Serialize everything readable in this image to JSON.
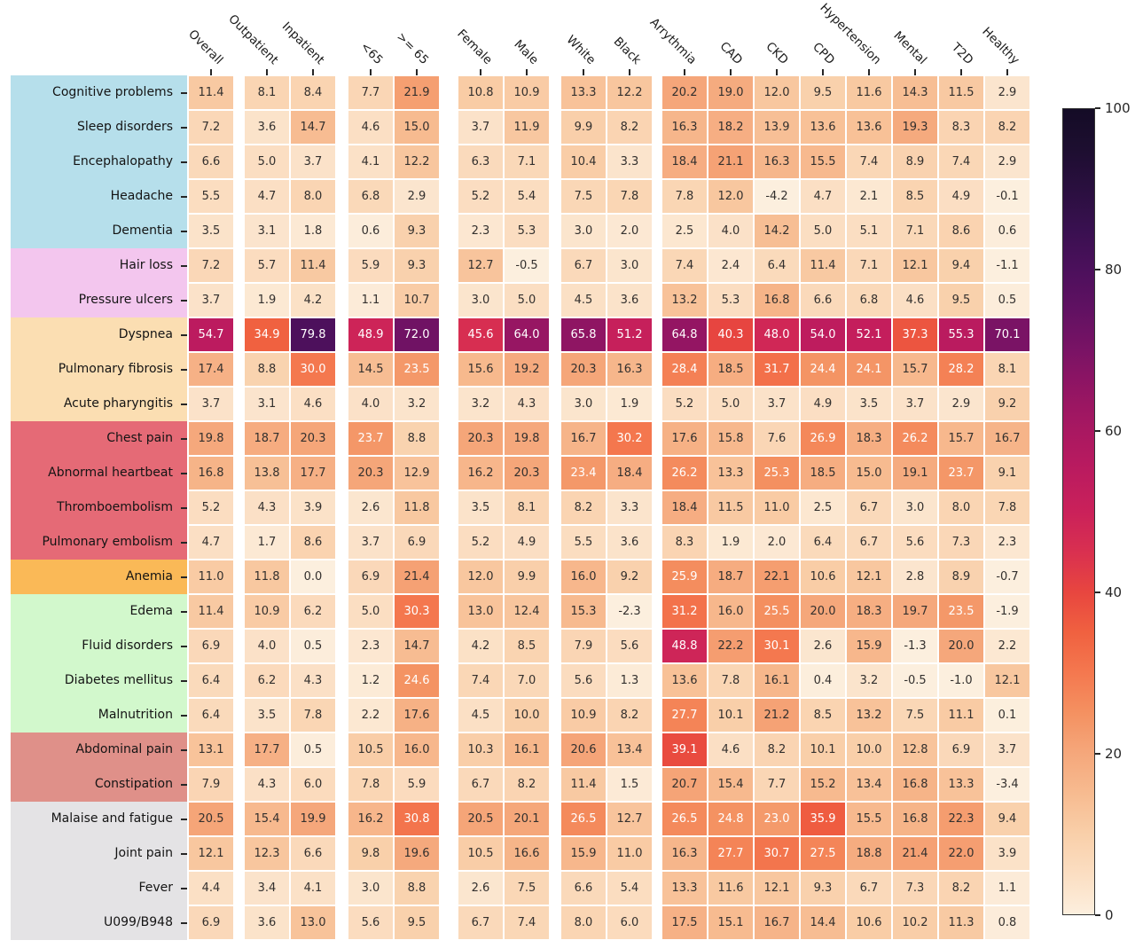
{
  "chart_data": {
    "type": "heatmap",
    "title": "",
    "columns": [
      "Overall",
      "Outpatient",
      "Inpatient",
      "<65",
      ">= 65",
      "Female",
      "Male",
      "White",
      "Black",
      "Arrythmia",
      "CAD",
      "CKD",
      "CPD",
      "Hypertension",
      "Mental",
      "T2D",
      "Healthy"
    ],
    "column_group_sizes": [
      1,
      2,
      2,
      2,
      2,
      8
    ],
    "rows": [
      "Cognitive problems",
      "Sleep disorders",
      "Encephalopathy",
      "Headache",
      "Dementia",
      "Hair loss",
      "Pressure ulcers",
      "Dyspnea",
      "Pulmonary fibrosis",
      "Acute pharyngitis",
      "Chest pain",
      "Abnormal heartbeat",
      "Thromboembolism",
      "Pulmonary embolism",
      "Anemia",
      "Edema",
      "Fluid disorders",
      "Diabetes mellitus",
      "Malnutrition",
      "Abdominal pain",
      "Constipation",
      "Malaise and fatigue",
      "Joint pain",
      "Fever",
      "U099/B948"
    ],
    "values": [
      [
        11.4,
        8.1,
        8.4,
        7.7,
        21.9,
        10.8,
        10.9,
        13.3,
        12.2,
        20.2,
        19.0,
        12.0,
        9.5,
        11.6,
        14.3,
        11.5,
        2.9
      ],
      [
        7.2,
        3.6,
        14.7,
        4.6,
        15.0,
        3.7,
        11.9,
        9.9,
        8.2,
        16.3,
        18.2,
        13.9,
        13.6,
        13.6,
        19.3,
        8.3,
        8.2
      ],
      [
        6.6,
        5.0,
        3.7,
        4.1,
        12.2,
        6.3,
        7.1,
        10.4,
        3.3,
        18.4,
        21.1,
        16.3,
        15.5,
        7.4,
        8.9,
        7.4,
        2.9
      ],
      [
        5.5,
        4.7,
        8.0,
        6.8,
        2.9,
        5.2,
        5.4,
        7.5,
        7.8,
        7.8,
        12.0,
        -4.2,
        4.7,
        2.1,
        8.5,
        4.9,
        -0.1
      ],
      [
        3.5,
        3.1,
        1.8,
        0.6,
        9.3,
        2.3,
        5.3,
        3.0,
        2.0,
        2.5,
        4.0,
        14.2,
        5.0,
        5.1,
        7.1,
        8.6,
        0.6
      ],
      [
        7.2,
        5.7,
        11.4,
        5.9,
        9.3,
        12.7,
        -0.5,
        6.7,
        3.0,
        7.4,
        2.4,
        6.4,
        11.4,
        7.1,
        12.1,
        9.4,
        -1.1
      ],
      [
        3.7,
        1.9,
        4.2,
        1.1,
        10.7,
        3.0,
        5.0,
        4.5,
        3.6,
        13.2,
        5.3,
        16.8,
        6.6,
        6.8,
        4.6,
        9.5,
        0.5
      ],
      [
        54.7,
        34.9,
        79.8,
        48.9,
        72.0,
        45.6,
        64.0,
        65.8,
        51.2,
        64.8,
        40.3,
        48.0,
        54.0,
        52.1,
        37.3,
        55.3,
        70.1
      ],
      [
        17.4,
        8.8,
        30.0,
        14.5,
        23.5,
        15.6,
        19.2,
        20.3,
        16.3,
        28.4,
        18.5,
        31.7,
        24.4,
        24.1,
        15.7,
        28.2,
        8.1
      ],
      [
        3.7,
        3.1,
        4.6,
        4.0,
        3.2,
        3.2,
        4.3,
        3.0,
        1.9,
        5.2,
        5.0,
        3.7,
        4.9,
        3.5,
        3.7,
        2.9,
        9.2
      ],
      [
        19.8,
        18.7,
        20.3,
        23.7,
        8.8,
        20.3,
        19.8,
        16.7,
        30.2,
        17.6,
        15.8,
        7.6,
        26.9,
        18.3,
        26.2,
        15.7,
        16.7
      ],
      [
        16.8,
        13.8,
        17.7,
        20.3,
        12.9,
        16.2,
        20.3,
        23.4,
        18.4,
        26.2,
        13.3,
        25.3,
        18.5,
        15.0,
        19.1,
        23.7,
        9.1
      ],
      [
        5.2,
        4.3,
        3.9,
        2.6,
        11.8,
        3.5,
        8.1,
        8.2,
        3.3,
        18.4,
        11.5,
        11.0,
        2.5,
        6.7,
        3.0,
        8.0,
        7.8
      ],
      [
        4.7,
        1.7,
        8.6,
        3.7,
        6.9,
        5.2,
        4.9,
        5.5,
        3.6,
        8.3,
        1.9,
        2.0,
        6.4,
        6.7,
        5.6,
        7.3,
        2.3
      ],
      [
        11.0,
        11.8,
        0.0,
        6.9,
        21.4,
        12.0,
        9.9,
        16.0,
        9.2,
        25.9,
        18.7,
        22.1,
        10.6,
        12.1,
        2.8,
        8.9,
        -0.7
      ],
      [
        11.4,
        10.9,
        6.2,
        5.0,
        30.3,
        13.0,
        12.4,
        15.3,
        -2.3,
        31.2,
        16.0,
        25.5,
        20.0,
        18.3,
        19.7,
        23.5,
        -1.9
      ],
      [
        6.9,
        4.0,
        0.5,
        2.3,
        14.7,
        4.2,
        8.5,
        7.9,
        5.6,
        48.8,
        22.2,
        30.1,
        2.6,
        15.9,
        -1.3,
        20.0,
        2.2
      ],
      [
        6.4,
        6.2,
        4.3,
        1.2,
        24.6,
        7.4,
        7.0,
        5.6,
        1.3,
        13.6,
        7.8,
        16.1,
        0.4,
        3.2,
        -0.5,
        -1.0,
        12.1
      ],
      [
        6.4,
        3.5,
        7.8,
        2.2,
        17.6,
        4.5,
        10.0,
        10.9,
        8.2,
        27.7,
        10.1,
        21.2,
        8.5,
        13.2,
        7.5,
        11.1,
        0.1
      ],
      [
        13.1,
        17.7,
        0.5,
        10.5,
        16.0,
        10.3,
        16.1,
        20.6,
        13.4,
        39.1,
        4.6,
        8.2,
        10.1,
        10.0,
        12.8,
        6.9,
        3.7
      ],
      [
        7.9,
        4.3,
        6.0,
        7.8,
        5.9,
        6.7,
        8.2,
        11.4,
        1.5,
        20.7,
        15.4,
        7.7,
        15.2,
        13.4,
        16.8,
        13.3,
        -3.4
      ],
      [
        20.5,
        15.4,
        19.9,
        16.2,
        30.8,
        20.5,
        20.1,
        26.5,
        12.7,
        26.5,
        24.8,
        23.0,
        35.9,
        15.5,
        16.8,
        22.3,
        9.4
      ],
      [
        12.1,
        12.3,
        6.6,
        9.8,
        19.6,
        10.5,
        16.6,
        15.9,
        11.0,
        16.3,
        27.7,
        30.7,
        27.5,
        18.8,
        21.4,
        22.0,
        3.9
      ],
      [
        4.4,
        3.4,
        4.1,
        3.0,
        8.8,
        2.6,
        7.5,
        6.6,
        5.4,
        13.3,
        11.6,
        12.1,
        9.3,
        6.7,
        7.3,
        8.2,
        1.1
      ],
      [
        6.9,
        3.6,
        13.0,
        5.6,
        9.5,
        6.7,
        7.4,
        8.0,
        6.0,
        17.5,
        15.1,
        16.7,
        14.4,
        10.6,
        10.2,
        11.3,
        0.8
      ]
    ],
    "row_groups": [
      {
        "start": 0,
        "end": 4,
        "color": "#b6dfeb"
      },
      {
        "start": 5,
        "end": 6,
        "color": "#f3c6ee"
      },
      {
        "start": 7,
        "end": 9,
        "color": "#fbdeb2"
      },
      {
        "start": 10,
        "end": 13,
        "color": "#e56a76"
      },
      {
        "start": 14,
        "end": 14,
        "color": "#fab957"
      },
      {
        "start": 15,
        "end": 18,
        "color": "#d2f8cc"
      },
      {
        "start": 19,
        "end": 20,
        "color": "#df9089"
      },
      {
        "start": 21,
        "end": 24,
        "color": "#e4e3e5"
      }
    ],
    "colorbar": {
      "min": 0,
      "max": 100,
      "ticks": [
        0,
        20,
        40,
        60,
        80,
        100
      ],
      "position": "right"
    },
    "colormap": [
      [
        0,
        "#fcefde"
      ],
      [
        5,
        "#fbdec2"
      ],
      [
        10,
        "#f9cfa9"
      ],
      [
        15,
        "#f7bb90"
      ],
      [
        20,
        "#f5a77b"
      ],
      [
        25,
        "#f49161"
      ],
      [
        30,
        "#f4784f"
      ],
      [
        35,
        "#f06140"
      ],
      [
        40,
        "#e8463f"
      ],
      [
        45,
        "#d93050"
      ],
      [
        50,
        "#ca215a"
      ],
      [
        55,
        "#bb1b5f"
      ],
      [
        60,
        "#a91861"
      ],
      [
        65,
        "#931563"
      ],
      [
        70,
        "#7a1365"
      ],
      [
        75,
        "#611162"
      ],
      [
        80,
        "#4c105c"
      ],
      [
        85,
        "#391050"
      ],
      [
        90,
        "#2a0f3f"
      ],
      [
        95,
        "#1d0e30"
      ],
      [
        100,
        "#140c26"
      ]
    ],
    "annotation_colors": {
      "dark_text": "#33302e",
      "light_text": "#ffffff",
      "tick_color": "#262626"
    },
    "value_format": "one_decimal",
    "grid": false,
    "legend_position": "right-colorbar"
  }
}
